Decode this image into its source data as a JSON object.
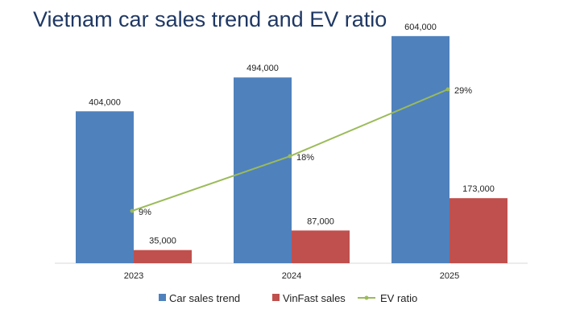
{
  "title": "Vietnam car sales trend and EV ratio",
  "colors": {
    "car_sales": "#4f81bd",
    "vinfast": "#c0504d",
    "ev_ratio": "#9bbb59",
    "axis": "#d9d9d9",
    "title": "#1f3864"
  },
  "chart_data": {
    "type": "bar",
    "title": "Vietnam car sales trend and EV ratio",
    "categories": [
      "2023",
      "2024",
      "2025"
    ],
    "series": [
      {
        "name": "Car sales trend",
        "type": "bar",
        "values": [
          404000,
          494000,
          604000
        ],
        "labels": [
          "404,000",
          "494,000",
          "604,000"
        ]
      },
      {
        "name": "VinFast sales",
        "type": "bar",
        "values": [
          35000,
          87000,
          173000
        ],
        "labels": [
          "35,000",
          "87,000",
          "173,000"
        ]
      },
      {
        "name": "EV ratio",
        "type": "line",
        "values": [
          9,
          18,
          29
        ],
        "labels": [
          "9%",
          "18%",
          "29%"
        ]
      }
    ],
    "ylim": [
      0,
      700000
    ],
    "ylim_secondary": [
      0,
      40
    ],
    "grid": false,
    "legend": "bottom"
  }
}
